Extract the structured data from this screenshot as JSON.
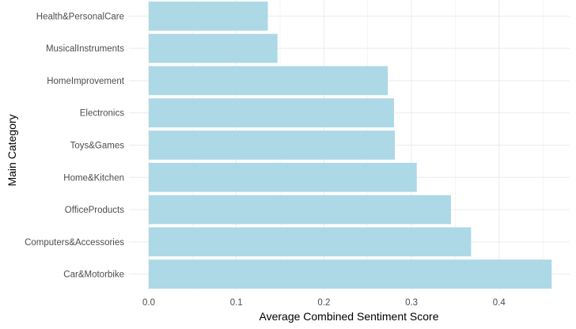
{
  "chart_data": {
    "type": "bar",
    "orientation": "horizontal",
    "xlabel": "Average Combined Sentiment Score",
    "ylabel": "Main Category",
    "xlim": [
      0,
      0.46
    ],
    "x_ticks": [
      "0.0",
      "0.1",
      "0.2",
      "0.3",
      "0.4"
    ],
    "grid": true,
    "bar_color": "#add8e6",
    "grid_color": "#ebebeb",
    "categories": [
      "Health&PersonalCare",
      "MusicalInstruments",
      "HomeImprovement",
      "Electronics",
      "Toys&Games",
      "Home&Kitchen",
      "OfficeProducts",
      "Computers&Accessories",
      "Car&Motorbike"
    ],
    "values": [
      0.136,
      0.147,
      0.273,
      0.28,
      0.281,
      0.306,
      0.345,
      0.368,
      0.46
    ]
  }
}
